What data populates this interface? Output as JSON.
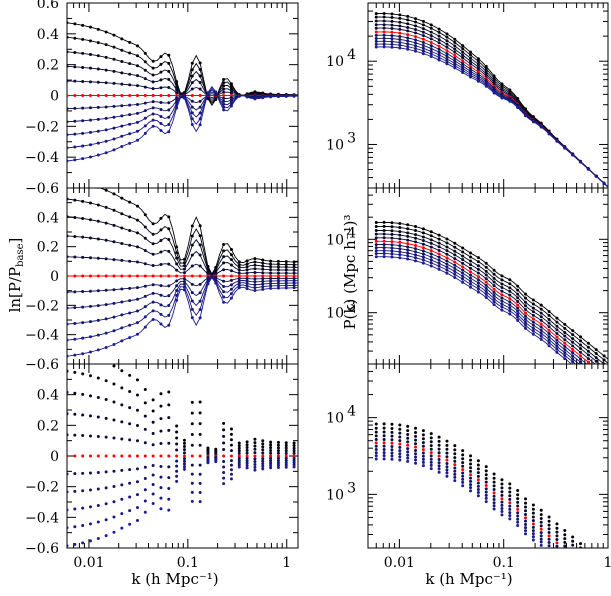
{
  "figure": {
    "left_xlabel": "k (h Mpc⁻¹)",
    "right_xlabel": "k (h Mpc⁻¹)",
    "left_ylabel_main": "ln[P/P",
    "left_ylabel_sub": "base",
    "left_ylabel_close": "]",
    "right_ylabel": "P(k) (Mpc h⁻¹)³"
  },
  "chart_data": [
    {
      "type": "line",
      "panel": "left-top",
      "xscale": "log",
      "xlim": [
        0.006,
        1.3
      ],
      "ylim": [
        -0.6,
        0.6
      ],
      "yticks": [
        "0.6",
        "0.4",
        "0.2",
        "0",
        "−0.2",
        "−0.4",
        "−0.6"
      ],
      "xticks": [],
      "amplitudes": [
        0.5,
        0.4,
        0.3,
        0.2,
        0.1,
        0.0,
        -0.09,
        -0.18,
        -0.27,
        -0.36,
        -0.45
      ],
      "plateau_fraction": 0.0,
      "markers": "dots-with-curves",
      "grid": false
    },
    {
      "type": "line",
      "panel": "left-middle",
      "xscale": "log",
      "xlim": [
        0.006,
        1.3
      ],
      "ylim": [
        -0.6,
        0.6
      ],
      "yticks": [
        "0.4",
        "0.2",
        "0",
        "−0.2",
        "−0.4",
        "−0.6"
      ],
      "xticks": [],
      "amplitudes": [
        0.6,
        0.48,
        0.37,
        0.25,
        0.12,
        0.0,
        -0.1,
        -0.2,
        -0.3,
        -0.4,
        -0.5
      ],
      "plateau_fraction": 0.15,
      "markers": "dots-with-curves",
      "grid": false
    },
    {
      "type": "scatter",
      "panel": "left-bottom",
      "xscale": "log",
      "xlim": [
        0.006,
        1.3
      ],
      "ylim": [
        -0.6,
        0.6
      ],
      "yticks": [
        "0.4",
        "0.2",
        "0",
        "−0.2",
        "−0.4",
        "−0.6"
      ],
      "xticks": [
        "0.01",
        "0.1",
        "1"
      ],
      "amplitudes": [
        0.65,
        0.52,
        0.39,
        0.26,
        0.13,
        0.0,
        -0.11,
        -0.22,
        -0.33,
        -0.44,
        -0.55
      ],
      "plateau_fraction": 0.12,
      "markers": "dots-only",
      "grid": false
    },
    {
      "type": "line",
      "panel": "right-top",
      "xscale": "log",
      "yscale": "log",
      "xlim": [
        0.005,
        1.0
      ],
      "ylim": [
        300,
        50000
      ],
      "yticks": [
        {
          "base": "10",
          "exp": "3",
          "value": 1000
        },
        {
          "base": "10",
          "exp": "4",
          "value": 10000
        }
      ],
      "xticks": [],
      "peak_values": [
        37500,
        34000,
        30500,
        27500,
        25000,
        22500,
        20500,
        18800,
        17300,
        16000,
        14800
      ],
      "highlight": "red",
      "grid": false
    },
    {
      "type": "line",
      "panel": "right-middle",
      "xscale": "log",
      "yscale": "log",
      "xlim": [
        0.005,
        1.0
      ],
      "ylim": [
        200,
        50000
      ],
      "yticks": [
        {
          "base": "10",
          "exp": "3",
          "value": 1000
        },
        {
          "base": "10",
          "exp": "4",
          "value": 10000
        }
      ],
      "xticks": [],
      "peak_values": [
        17000,
        15000,
        13200,
        11800,
        10500,
        9400,
        8500,
        7700,
        7000,
        6400,
        5800
      ],
      "highlight": "red",
      "grid": false
    },
    {
      "type": "scatter",
      "panel": "right-bottom",
      "xscale": "log",
      "yscale": "log",
      "xlim": [
        0.005,
        1.0
      ],
      "ylim": [
        200,
        50000
      ],
      "yticks": [
        {
          "base": "10",
          "exp": "3",
          "value": 1000
        },
        {
          "base": "10",
          "exp": "4",
          "value": 10000
        }
      ],
      "xticks": [
        "0.01",
        "0.1",
        "1"
      ],
      "peak_values": [
        8300,
        7300,
        6500,
        5800,
        5200,
        4700,
        4250,
        3850,
        3500,
        3200,
        2900
      ],
      "highlight": "red",
      "grid": false
    }
  ]
}
